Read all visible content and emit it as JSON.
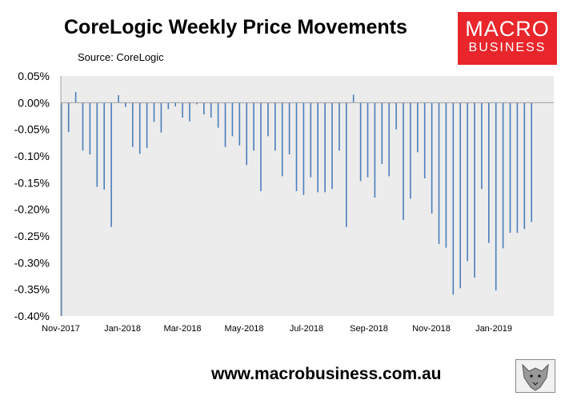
{
  "header": {
    "title": "CoreLogic Weekly Price Movements",
    "source": "Source: CoreLogic"
  },
  "logo": {
    "line1": "MACRO",
    "line2": "BUSINESS",
    "color": "#e8262b"
  },
  "footer": {
    "url": "www.macrobusiness.com.au"
  },
  "icons": {
    "wolf": "wolf-logo-icon"
  },
  "chart_data": {
    "type": "bar",
    "series_color": "#4a7ebb",
    "plot_background": "#ececec",
    "ylim": [
      -0.4,
      0.05
    ],
    "yticks": [
      "0.05%",
      "0.00%",
      "-0.05%",
      "-0.10%",
      "-0.15%",
      "-0.20%",
      "-0.25%",
      "-0.30%",
      "-0.35%",
      "-0.40%"
    ],
    "xticks": [
      "Nov-2017",
      "Jan-2018",
      "Mar-2018",
      "May-2018",
      "Jul-2018",
      "Sep-2018",
      "Nov-2018",
      "Jan-2019"
    ],
    "values": [
      -0.4,
      -0.055,
      0.02,
      -0.09,
      -0.097,
      -0.158,
      -0.163,
      -0.233,
      0.014,
      -0.008,
      -0.083,
      -0.096,
      -0.085,
      -0.036,
      -0.056,
      -0.012,
      -0.007,
      -0.028,
      -0.035,
      -0.003,
      -0.022,
      -0.028,
      -0.047,
      -0.083,
      -0.063,
      -0.08,
      -0.117,
      -0.09,
      -0.166,
      -0.063,
      -0.09,
      -0.138,
      -0.097,
      -0.166,
      -0.173,
      -0.14,
      -0.168,
      -0.168,
      -0.162,
      -0.09,
      -0.233,
      0.015,
      -0.147,
      -0.14,
      -0.178,
      -0.115,
      -0.138,
      -0.05,
      -0.22,
      -0.18,
      -0.093,
      -0.142,
      -0.208,
      -0.265,
      -0.272,
      -0.36,
      -0.348,
      -0.297,
      -0.328,
      -0.162,
      -0.263,
      -0.352,
      -0.273,
      -0.244,
      -0.244,
      -0.237,
      -0.224
    ],
    "grid": false,
    "legend": "none"
  }
}
